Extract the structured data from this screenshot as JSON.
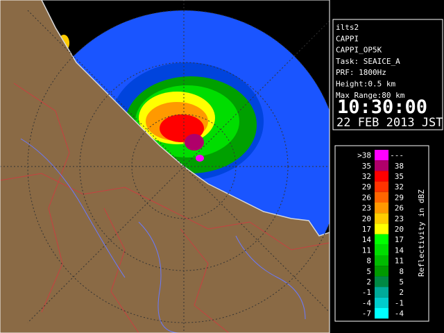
{
  "info": {
    "lines": [
      "ilts2",
      "CAPPI",
      "CAPPI_OP5K",
      "Task: SEAICE_A",
      "PRF: 1800Hz",
      "Height:0.5 km",
      "Max Range:80 km"
    ],
    "time": "10:30:00",
    "date": "22 FEB 2013 JST"
  },
  "legend": {
    "title": "Reflectivity in dBZ",
    "rows": [
      {
        "low": ">38",
        "high": "---",
        "color": "#ff00ff"
      },
      {
        "low": "35",
        "high": "38",
        "color": "#b0006a"
      },
      {
        "low": "32",
        "high": "35",
        "color": "#ff0000"
      },
      {
        "low": "29",
        "high": "32",
        "color": "#ff3300"
      },
      {
        "low": "26",
        "high": "29",
        "color": "#ff6600"
      },
      {
        "low": "23",
        "high": "26",
        "color": "#ff9900"
      },
      {
        "low": "20",
        "high": "23",
        "color": "#ffcc00"
      },
      {
        "low": "17",
        "high": "20",
        "color": "#ffff00"
      },
      {
        "low": "14",
        "high": "17",
        "color": "#00ff00"
      },
      {
        "low": "11",
        "high": "14",
        "color": "#00dd00"
      },
      {
        "low": "8",
        "high": "11",
        "color": "#00bb00"
      },
      {
        "low": "5",
        "high": "8",
        "color": "#009900"
      },
      {
        "low": "2",
        "high": "5",
        "color": "#008844"
      },
      {
        "low": "-1",
        "high": "2",
        "color": "#00aa99"
      },
      {
        "low": "-4",
        "high": "-1",
        "color": "#00cccc"
      },
      {
        "low": "-7",
        "high": "-4",
        "color": "#00ffff"
      }
    ]
  }
}
